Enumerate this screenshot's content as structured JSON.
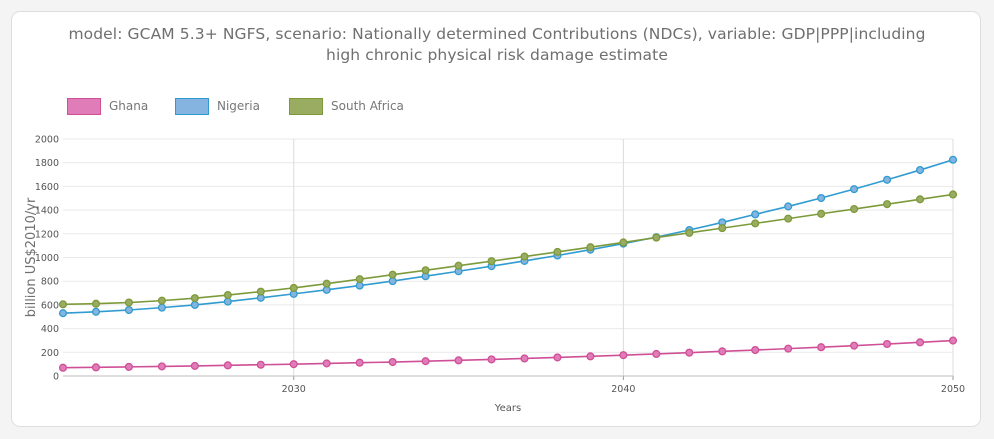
{
  "chart_data": {
    "type": "line",
    "title_lines": [
      "model: GCAM 5.3+ NGFS, scenario: Nationally determined Contributions (NDCs), variable: GDP|PPP|including",
      "high chronic physical risk damage estimate"
    ],
    "xlabel": "Years",
    "ylabel": "billion US$2010/yr",
    "xlim": [
      2023,
      2050
    ],
    "ylim": [
      0,
      2000
    ],
    "x_ticks": [
      2030,
      2040,
      2050
    ],
    "y_ticks": [
      0,
      200,
      400,
      600,
      800,
      1000,
      1200,
      1400,
      1600,
      1800,
      2000
    ],
    "grid": true,
    "legend_position": "top-left",
    "x": [
      2023,
      2024,
      2025,
      2026,
      2027,
      2028,
      2029,
      2030,
      2031,
      2032,
      2033,
      2034,
      2035,
      2036,
      2037,
      2038,
      2039,
      2040,
      2041,
      2042,
      2043,
      2044,
      2045,
      2046,
      2047,
      2048,
      2049,
      2050
    ],
    "series": [
      {
        "name": "Ghana",
        "color": "#e07cb7",
        "stroke": "#cf4f97",
        "values": [
          70,
          73,
          77,
          81,
          85,
          90,
          95,
          100,
          106,
          112,
          118,
          125,
          132,
          140,
          148,
          157,
          166,
          176,
          186,
          197,
          208,
          219,
          231,
          243,
          256,
          270,
          284,
          299
        ]
      },
      {
        "name": "Nigeria",
        "color": "#85b4e0",
        "stroke": "#2f9bd0",
        "values": [
          530,
          542,
          557,
          577,
          600,
          628,
          660,
          693,
          727,
          763,
          801,
          842,
          884,
          927,
          971,
          1017,
          1066,
          1117,
          1172,
          1232,
          1296,
          1364,
          1431,
          1502,
          1577,
          1656,
          1738,
          1825
        ]
      },
      {
        "name": "South Africa",
        "color": "#9aab62",
        "stroke": "#7d9a3a",
        "values": [
          605,
          610,
          620,
          636,
          657,
          683,
          712,
          743,
          779,
          817,
          855,
          892,
          931,
          969,
          1008,
          1047,
          1087,
          1127,
          1168,
          1208,
          1248,
          1288,
          1328,
          1369,
          1409,
          1450,
          1491,
          1532
        ]
      }
    ]
  }
}
